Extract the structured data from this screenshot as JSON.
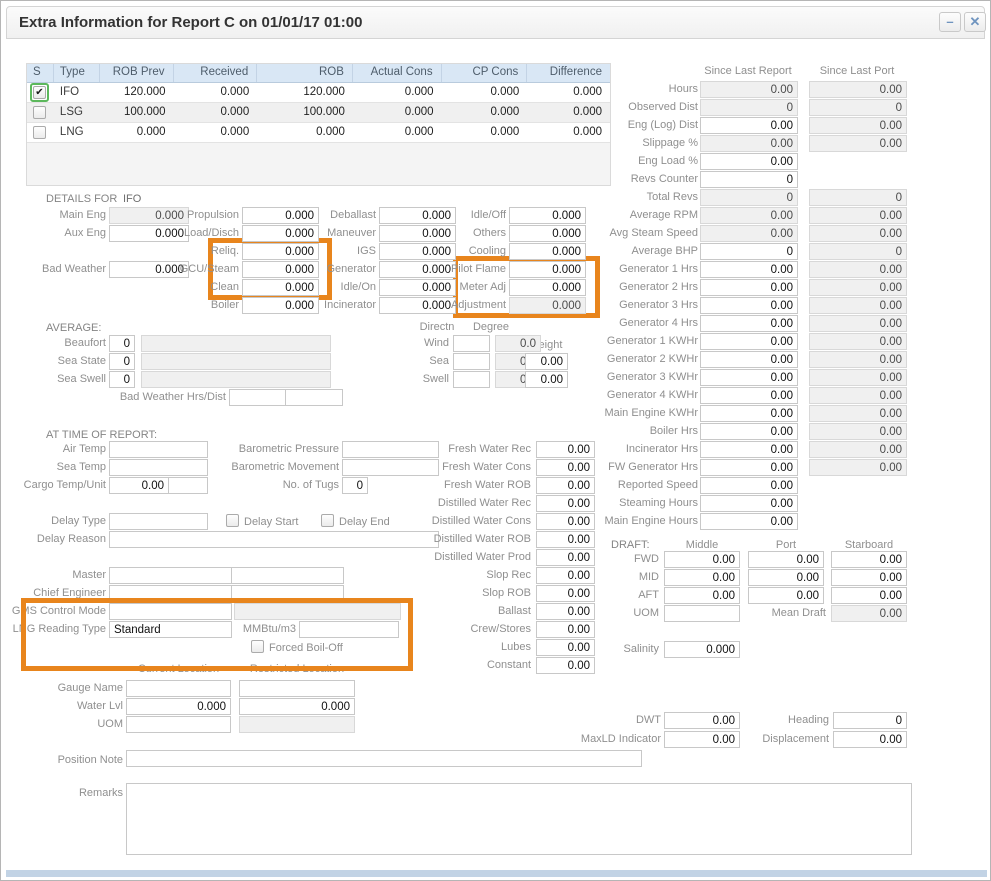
{
  "window": {
    "title": "Extra Information for Report C on 01/01/17 01:00",
    "minimize_glyph": "–",
    "close_glyph": "✕"
  },
  "colors": {
    "highlight": "#E8851D",
    "table_header_bg": "#D9E7F5",
    "selected_checkbox_border": "#5CB85C",
    "bottom_bar": "#C2D3E5"
  },
  "fuel_table": {
    "headers": [
      "S",
      "Type",
      "ROB Prev",
      "Received",
      "ROB",
      "Actual Cons",
      "CP Cons",
      "Difference"
    ],
    "rows": [
      {
        "selected": true,
        "type": "IFO",
        "values": [
          "120.000",
          "0.000",
          "120.000",
          "0.000",
          "0.000",
          "0.000"
        ]
      },
      {
        "selected": false,
        "type": "LSG",
        "values": [
          "100.000",
          "0.000",
          "100.000",
          "0.000",
          "0.000",
          "0.000"
        ]
      },
      {
        "selected": false,
        "type": "LNG",
        "values": [
          "0.000",
          "0.000",
          "0.000",
          "0.000",
          "0.000",
          "0.000"
        ]
      }
    ]
  },
  "since_last": {
    "report_header": "Since Last Report",
    "port_header": "Since Last Port",
    "rows": [
      {
        "label": "Hours",
        "report": "0.00",
        "report_ro": true,
        "port": "0.00"
      },
      {
        "label": "Observed Dist",
        "report": "0",
        "report_ro": true,
        "port": "0"
      },
      {
        "label": "Eng (Log) Dist",
        "report": "0.00",
        "report_ro": false,
        "port": "0.00"
      },
      {
        "label": "Slippage %",
        "report": "0.00",
        "report_ro": true,
        "port": "0.00"
      },
      {
        "label": "Eng Load %",
        "report": "0.00",
        "report_ro": false,
        "port": null
      },
      {
        "label": "Revs Counter",
        "report": "0",
        "report_ro": false,
        "port": null
      },
      {
        "label": "Total Revs",
        "report": "0",
        "report_ro": true,
        "port": "0"
      },
      {
        "label": "Average RPM",
        "report": "0.00",
        "report_ro": true,
        "port": "0.00"
      },
      {
        "label": "Avg Steam Speed",
        "report": "0.00",
        "report_ro": true,
        "port": "0.00"
      },
      {
        "label": "Average BHP",
        "report": "0",
        "report_ro": false,
        "port": "0"
      },
      {
        "label": "Generator 1 Hrs",
        "report": "0.00",
        "report_ro": false,
        "port": "0.00"
      },
      {
        "label": "Generator 2 Hrs",
        "report": "0.00",
        "report_ro": false,
        "port": "0.00"
      },
      {
        "label": "Generator 3 Hrs",
        "report": "0.00",
        "report_ro": false,
        "port": "0.00"
      },
      {
        "label": "Generator 4 Hrs",
        "report": "0.00",
        "report_ro": false,
        "port": "0.00"
      },
      {
        "label": "Generator 1 KWHr",
        "report": "0.00",
        "report_ro": false,
        "port": "0.00"
      },
      {
        "label": "Generator 2 KWHr",
        "report": "0.00",
        "report_ro": false,
        "port": "0.00"
      },
      {
        "label": "Generator 3 KWHr",
        "report": "0.00",
        "report_ro": false,
        "port": "0.00"
      },
      {
        "label": "Generator 4 KWHr",
        "report": "0.00",
        "report_ro": false,
        "port": "0.00"
      },
      {
        "label": "Main Engine KWHr",
        "report": "0.00",
        "report_ro": false,
        "port": "0.00"
      },
      {
        "label": "Boiler Hrs",
        "report": "0.00",
        "report_ro": false,
        "port": "0.00"
      },
      {
        "label": "Incinerator Hrs",
        "report": "0.00",
        "report_ro": false,
        "port": "0.00"
      },
      {
        "label": "FW Generator Hrs",
        "report": "0.00",
        "report_ro": false,
        "port": "0.00"
      },
      {
        "label": "Reported Speed",
        "report": "0.00",
        "report_ro": false,
        "port": null
      },
      {
        "label": "Steaming Hours",
        "report": "0.00",
        "report_ro": false,
        "port": null
      },
      {
        "label": "Main Engine Hours",
        "report": "0.00",
        "report_ro": false,
        "port": null
      }
    ]
  },
  "details": {
    "heading": "DETAILS FOR",
    "fuel": "IFO",
    "col1": [
      {
        "label": "Main Eng",
        "value": "0.000",
        "ro": true
      },
      {
        "label": "Aux Eng",
        "value": "0.000",
        "ro": false
      },
      {
        "label": "Bad Weather",
        "value": "0.000",
        "ro": false
      }
    ],
    "col2": [
      {
        "label": "Propulsion",
        "value": "0.000",
        "ro": false
      },
      {
        "label": "Load/Disch",
        "value": "0.000",
        "ro": false
      },
      {
        "label": "Reliq.",
        "value": "0.000",
        "ro": false
      },
      {
        "label": "GCU/Steam",
        "value": "0.000",
        "ro": false
      },
      {
        "label": "Clean",
        "value": "0.000",
        "ro": false
      },
      {
        "label": "Boiler",
        "value": "0.000",
        "ro": false
      }
    ],
    "col3": [
      {
        "label": "Deballast",
        "value": "0.000",
        "ro": false
      },
      {
        "label": "Maneuver",
        "value": "0.000",
        "ro": false
      },
      {
        "label": "IGS",
        "value": "0.000",
        "ro": false
      },
      {
        "label": "Generator",
        "value": "0.000",
        "ro": false
      },
      {
        "label": "Idle/On",
        "value": "0.000",
        "ro": false
      },
      {
        "label": "Incinerator",
        "value": "0.000",
        "ro": false
      }
    ],
    "col4": [
      {
        "label": "Idle/Off",
        "value": "0.000",
        "ro": false
      },
      {
        "label": "Others",
        "value": "0.000",
        "ro": false
      },
      {
        "label": "Cooling",
        "value": "0.000",
        "ro": false
      },
      {
        "label": "Pilot Flame",
        "value": "0.000",
        "ro": false
      },
      {
        "label": "Meter Adj",
        "value": "0.000",
        "ro": false
      },
      {
        "label": "Adjustment",
        "value": "0.000",
        "ro": true
      }
    ]
  },
  "average": {
    "heading": "AVERAGE:",
    "sea_rows": [
      {
        "label": "Beaufort",
        "value": "0"
      },
      {
        "label": "Sea State",
        "value": "0"
      },
      {
        "label": "Sea Swell",
        "value": "0"
      }
    ],
    "bad_weather_label": "Bad Weather Hrs/Dist",
    "directn_header": "Directn",
    "degree_header": "Degree",
    "height_label": "Height",
    "wind_rows": [
      {
        "label": "Wind",
        "degree": "0.0",
        "height": null
      },
      {
        "label": "Sea",
        "degree": "0.0",
        "height": "0.00"
      },
      {
        "label": "Swell",
        "degree": "0.0",
        "height": "0.00"
      }
    ]
  },
  "at_time": {
    "heading": "AT TIME OF REPORT:",
    "air_temp_label": "Air Temp",
    "sea_temp_label": "Sea Temp",
    "cargo_label": "Cargo Temp/Unit",
    "cargo_value": "0.00",
    "baro_pressure_label": "Barometric Pressure",
    "baro_movement_label": "Barometric Movement",
    "tugs_label": "No. of Tugs",
    "tugs_value": "0",
    "delay_type_label": "Delay Type",
    "delay_start_label": "Delay Start",
    "delay_end_label": "Delay End",
    "delay_reason_label": "Delay Reason"
  },
  "water": {
    "rows": [
      {
        "label": "Fresh Water Rec",
        "value": "0.00"
      },
      {
        "label": "Fresh Water Cons",
        "value": "0.00"
      },
      {
        "label": "Fresh Water ROB",
        "value": "0.00"
      },
      {
        "label": "Distilled Water Rec",
        "value": "0.00"
      },
      {
        "label": "Distilled Water Cons",
        "value": "0.00"
      },
      {
        "label": "Distilled Water ROB",
        "value": "0.00"
      },
      {
        "label": "Distilled Water Prod",
        "value": "0.00"
      },
      {
        "label": "Slop Rec",
        "value": "0.00"
      },
      {
        "label": "Slop ROB",
        "value": "0.00"
      },
      {
        "label": "Ballast",
        "value": "0.00"
      },
      {
        "label": "Crew/Stores",
        "value": "0.00"
      },
      {
        "label": "Lubes",
        "value": "0.00"
      },
      {
        "label": "Constant",
        "value": "0.00"
      }
    ]
  },
  "crew": {
    "master_label": "Master",
    "chief_label": "Chief Engineer",
    "gms_label": "GMS Control Mode",
    "lng_label": "LNG Reading Type",
    "lng_value": "Standard",
    "mmbtu_label": "MMBtu/m3",
    "forced_label": "Forced Boil-Off"
  },
  "locations": {
    "current_header": "Current Location",
    "restricted_header": "Restricted Location",
    "gauge_label": "Gauge Name",
    "water_lvl_label": "Water Lvl",
    "water_lvl_current": "0.000",
    "water_lvl_restricted": "0.000",
    "uom_label": "UOM"
  },
  "draft": {
    "heading": "DRAFT:",
    "middle_header": "Middle",
    "port_header": "Port",
    "starboard_header": "Starboard",
    "rows": [
      {
        "label": "FWD",
        "middle": "0.00",
        "port": "0.00",
        "starboard": "0.00"
      },
      {
        "label": "MID",
        "middle": "0.00",
        "port": "0.00",
        "starboard": "0.00"
      },
      {
        "label": "AFT",
        "middle": "0.00",
        "port": "0.00",
        "starboard": "0.00"
      }
    ],
    "uom_label": "UOM",
    "mean_label": "Mean Draft",
    "mean_value": "0.00",
    "salinity_label": "Salinity",
    "salinity_value": "0.000"
  },
  "vessel": {
    "dwt_label": "DWT",
    "dwt_value": "0.00",
    "maxld_label": "MaxLD Indicator",
    "maxld_value": "0.00",
    "heading_label": "Heading",
    "heading_value": "0",
    "displacement_label": "Displacement",
    "displacement_value": "0.00"
  },
  "notes": {
    "position_note_label": "Position Note",
    "remarks_label": "Remarks"
  }
}
